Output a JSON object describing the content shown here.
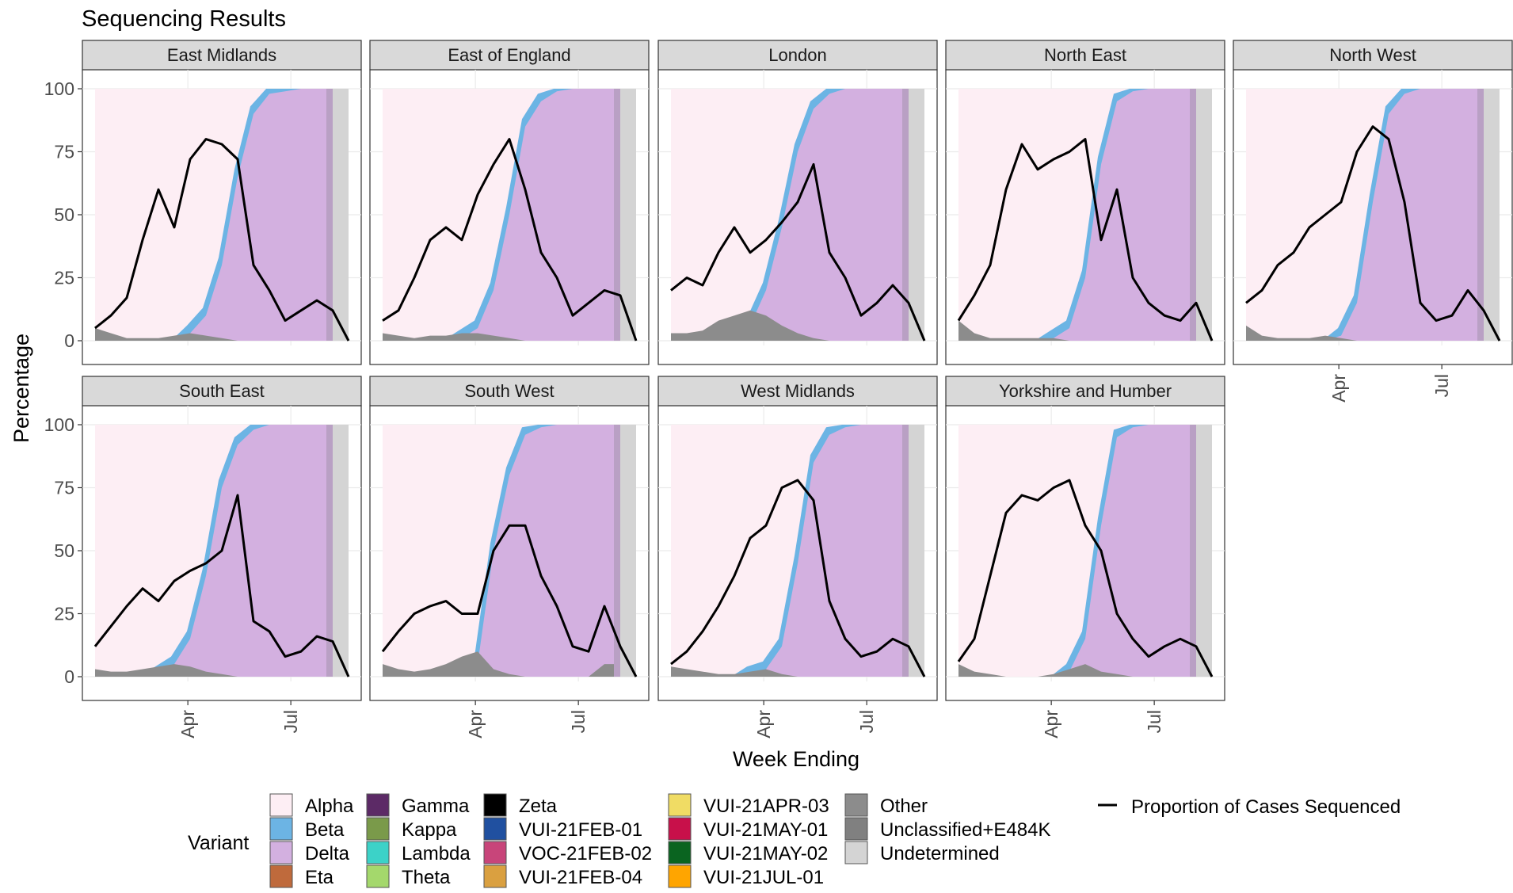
{
  "title": "Sequencing Results",
  "ylabel": "Percentage",
  "xlabel": "Week Ending",
  "yticks": [
    "0",
    "25",
    "50",
    "75",
    "100"
  ],
  "xticks": [
    "Apr",
    "Jul"
  ],
  "legend_fill_title": "Variant",
  "legend_line_label": "Proportion of Cases Sequenced",
  "colors": {
    "Alpha": "#fdeef4",
    "Beta": "#6cb4e4",
    "Delta": "#d3b0e0",
    "Eta": "#bf6a3c",
    "Gamma": "#5c2a66",
    "Kappa": "#7a9a4a",
    "Lambda": "#3cd2c8",
    "Theta": "#a4d86c",
    "Zeta": "#000000",
    "VUI-21FEB-01": "#2050a0",
    "VOC-21FEB-02": "#c8457a",
    "VUI-21FEB-04": "#daa040",
    "VUI-21APR-03": "#f0dc64",
    "VUI-21MAY-01": "#c8104a",
    "VUI-21MAY-02": "#0a6420",
    "VUI-21JUL-01": "#ffa500",
    "Other": "#8c8c8c",
    "Unclassified+E484K": "#808080",
    "Undetermined": "#d4d4d4"
  },
  "legend_columns": [
    [
      "Alpha",
      "Beta",
      "Delta",
      "Eta"
    ],
    [
      "Gamma",
      "Kappa",
      "Lambda",
      "Theta"
    ],
    [
      "Zeta",
      "VUI-21FEB-01",
      "VOC-21FEB-02",
      "VUI-21FEB-04"
    ],
    [
      "VUI-21APR-03",
      "VUI-21MAY-01",
      "VUI-21MAY-02",
      "VUI-21JUL-01"
    ],
    [
      "Other",
      "Unclassified+E484K",
      "Undetermined"
    ]
  ],
  "chart_data": {
    "type": "area",
    "x_unit": "week ending (2021)",
    "x": [
      "2021-01-09",
      "2021-01-23",
      "2021-02-06",
      "2021-02-20",
      "2021-03-06",
      "2021-03-20",
      "2021-04-03",
      "2021-04-17",
      "2021-05-01",
      "2021-05-15",
      "2021-05-29",
      "2021-06-12",
      "2021-06-26",
      "2021-07-10",
      "2021-07-24",
      "2021-08-07",
      "2021-08-21"
    ],
    "ylim": [
      0,
      100
    ],
    "panels": [
      {
        "name": "East Midlands",
        "delta_pct": [
          0,
          0,
          0,
          0,
          0,
          0,
          3,
          10,
          30,
          65,
          90,
          98,
          99,
          100,
          100,
          100,
          100
        ],
        "sequenced_pct": [
          5,
          10,
          17,
          40,
          60,
          45,
          72,
          80,
          78,
          72,
          30,
          20,
          8,
          12,
          16,
          12,
          0
        ],
        "minor_pct": [
          5,
          3,
          1,
          1,
          1,
          2,
          3,
          2,
          1,
          0,
          0,
          0,
          0,
          0,
          0,
          0,
          0
        ]
      },
      {
        "name": "East of England",
        "delta_pct": [
          0,
          0,
          0,
          0,
          0,
          1,
          5,
          20,
          50,
          85,
          95,
          99,
          100,
          100,
          100,
          100,
          100
        ],
        "sequenced_pct": [
          8,
          12,
          25,
          40,
          45,
          40,
          58,
          70,
          80,
          60,
          35,
          25,
          10,
          15,
          20,
          18,
          0
        ],
        "minor_pct": [
          3,
          2,
          1,
          2,
          2,
          3,
          3,
          2,
          1,
          0,
          0,
          0,
          0,
          0,
          0,
          0,
          0
        ]
      },
      {
        "name": "London",
        "delta_pct": [
          0,
          0,
          0,
          0,
          2,
          6,
          20,
          45,
          75,
          92,
          98,
          100,
          100,
          100,
          100,
          100,
          100
        ],
        "sequenced_pct": [
          20,
          25,
          22,
          35,
          45,
          35,
          40,
          47,
          55,
          70,
          35,
          25,
          10,
          15,
          22,
          15,
          0
        ],
        "minor_pct": [
          3,
          3,
          4,
          8,
          10,
          12,
          10,
          6,
          3,
          1,
          0,
          0,
          0,
          0,
          0,
          0,
          0
        ]
      },
      {
        "name": "North East",
        "delta_pct": [
          0,
          0,
          0,
          0,
          0,
          0,
          1,
          5,
          25,
          70,
          95,
          99,
          100,
          100,
          100,
          100,
          100
        ],
        "sequenced_pct": [
          8,
          18,
          30,
          60,
          78,
          68,
          72,
          75,
          80,
          40,
          60,
          25,
          15,
          10,
          8,
          15,
          0
        ],
        "minor_pct": [
          8,
          3,
          1,
          1,
          1,
          1,
          1,
          0,
          0,
          0,
          0,
          0,
          0,
          0,
          0,
          0,
          0
        ]
      },
      {
        "name": "North West",
        "delta_pct": [
          0,
          0,
          0,
          0,
          0,
          0,
          2,
          15,
          55,
          90,
          98,
          100,
          100,
          100,
          100,
          100,
          100
        ],
        "sequenced_pct": [
          15,
          20,
          30,
          35,
          45,
          50,
          55,
          75,
          85,
          80,
          55,
          15,
          8,
          10,
          20,
          12,
          0
        ],
        "minor_pct": [
          6,
          2,
          1,
          1,
          1,
          2,
          1,
          0,
          0,
          0,
          0,
          0,
          0,
          0,
          0,
          0,
          0
        ]
      },
      {
        "name": "South East",
        "delta_pct": [
          0,
          0,
          0,
          0,
          1,
          5,
          15,
          40,
          75,
          92,
          98,
          100,
          100,
          100,
          100,
          100,
          100
        ],
        "sequenced_pct": [
          12,
          20,
          28,
          35,
          30,
          38,
          42,
          45,
          50,
          72,
          22,
          18,
          8,
          10,
          16,
          14,
          0
        ],
        "minor_pct": [
          3,
          2,
          2,
          3,
          4,
          5,
          4,
          2,
          1,
          0,
          0,
          0,
          0,
          0,
          0,
          0,
          0
        ]
      },
      {
        "name": "South West",
        "delta_pct": [
          0,
          0,
          0,
          0,
          0,
          2,
          5,
          50,
          80,
          96,
          99,
          100,
          100,
          100,
          100,
          100,
          100
        ],
        "sequenced_pct": [
          10,
          18,
          25,
          28,
          30,
          25,
          25,
          50,
          60,
          60,
          40,
          28,
          12,
          10,
          28,
          12,
          0
        ],
        "minor_pct": [
          5,
          3,
          2,
          3,
          5,
          8,
          10,
          3,
          1,
          0,
          0,
          0,
          0,
          0,
          5,
          5,
          0
        ]
      },
      {
        "name": "West Midlands",
        "delta_pct": [
          0,
          0,
          0,
          0,
          0,
          1,
          3,
          12,
          45,
          85,
          96,
          99,
          100,
          100,
          100,
          100,
          100
        ],
        "sequenced_pct": [
          5,
          10,
          18,
          28,
          40,
          55,
          60,
          75,
          78,
          70,
          30,
          15,
          8,
          10,
          15,
          12,
          0
        ],
        "minor_pct": [
          4,
          3,
          2,
          1,
          1,
          2,
          3,
          1,
          0,
          0,
          0,
          0,
          0,
          0,
          0,
          0,
          0
        ]
      },
      {
        "name": "Yorkshire and Humber",
        "delta_pct": [
          0,
          0,
          0,
          0,
          0,
          0,
          0,
          2,
          15,
          60,
          95,
          99,
          100,
          100,
          100,
          100,
          100
        ],
        "sequenced_pct": [
          6,
          15,
          40,
          65,
          72,
          70,
          75,
          78,
          60,
          50,
          25,
          15,
          8,
          12,
          15,
          12,
          0
        ],
        "minor_pct": [
          5,
          2,
          1,
          0,
          0,
          0,
          1,
          3,
          5,
          2,
          1,
          0,
          0,
          0,
          0,
          0,
          0
        ]
      }
    ]
  }
}
